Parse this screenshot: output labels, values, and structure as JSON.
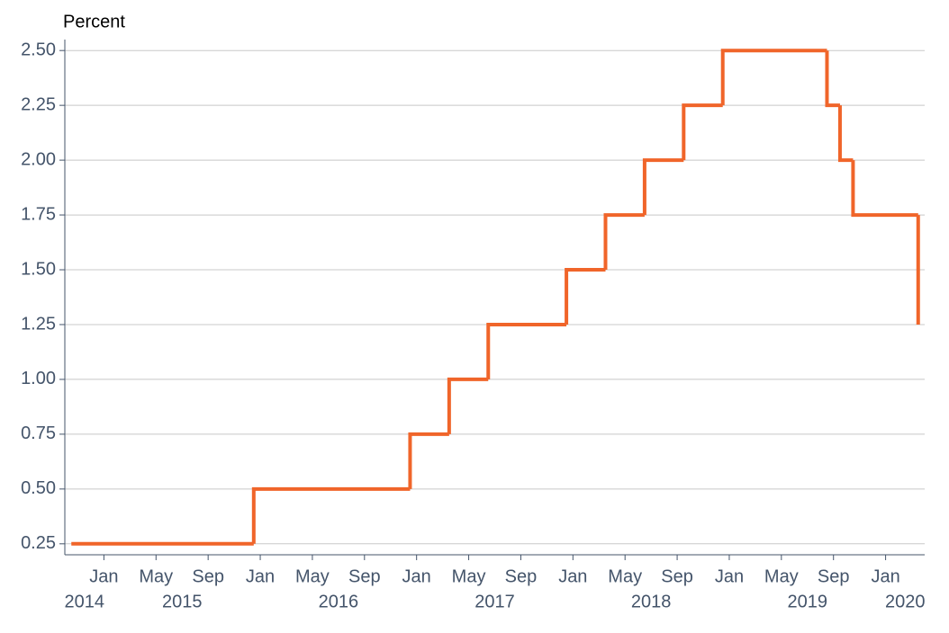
{
  "chart_data": {
    "type": "step",
    "y_label": "Percent",
    "x": [
      "2014-10",
      "2015-12",
      "2016-12",
      "2017-03",
      "2017-06",
      "2017-12",
      "2018-03",
      "2018-06",
      "2018-09",
      "2018-12",
      "2019-08",
      "2019-09",
      "2019-10",
      "2020-03"
    ],
    "values": [
      0.25,
      0.5,
      0.75,
      1,
      1.25,
      1.5,
      1.75,
      2,
      2.25,
      2.5,
      2.25,
      2,
      1.75,
      1.25
    ],
    "color": "#f0652a",
    "xlim": [
      "2014-10",
      "2020-04"
    ],
    "xticks": [
      {
        "value": "2015-01",
        "label": "Jan"
      },
      {
        "value": "2015-05",
        "label": "May"
      },
      {
        "value": "2015-09",
        "label": "Sep"
      },
      {
        "value": "2016-01",
        "label": "Jan"
      },
      {
        "value": "2016-05",
        "label": "May"
      },
      {
        "value": "2016-09",
        "label": "Sep"
      },
      {
        "value": "2017-01",
        "label": "Jan"
      },
      {
        "value": "2017-05",
        "label": "May"
      },
      {
        "value": "2017-09",
        "label": "Sep"
      },
      {
        "value": "2018-01",
        "label": "Jan"
      },
      {
        "value": "2018-05",
        "label": "May"
      },
      {
        "value": "2018-09",
        "label": "Sep"
      },
      {
        "value": "2019-01",
        "label": "Jan"
      },
      {
        "value": "2019-05",
        "label": "May"
      },
      {
        "value": "2019-09",
        "label": "Sep"
      },
      {
        "value": "2020-01",
        "label": "Jan"
      }
    ],
    "x_year_labels": [
      "2014",
      "2015",
      "2016",
      "2017",
      "2018",
      "2019",
      "2020"
    ],
    "ylim": [
      0.2,
      2.55
    ],
    "yticks": [
      0.25,
      {
        "value": 0.5,
        "label": "0.50"
      },
      0.75,
      {
        "value": 1,
        "label": "1.00"
      },
      1.25,
      {
        "value": 1.5,
        "label": "1.50"
      },
      1.75,
      {
        "value": 2,
        "label": "2.00"
      },
      2.25,
      {
        "value": 2.5,
        "label": "2.50"
      }
    ],
    "grid": true
  }
}
